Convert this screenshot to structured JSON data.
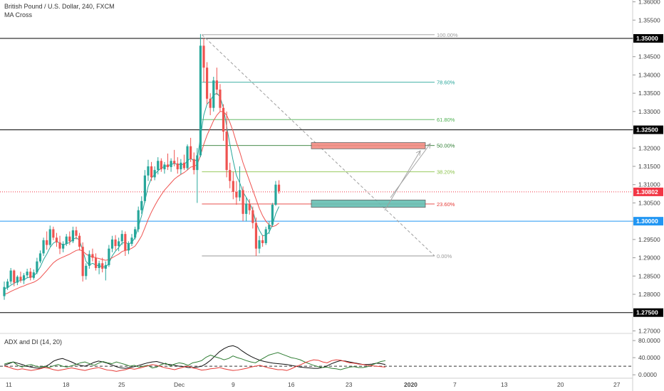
{
  "header": {
    "symbol_title": "British Pound / U.S. Dollar, 240, FXCM",
    "indicator_label": "MA Cross"
  },
  "sub_panel": {
    "label": "ADX and DI (14, 20)",
    "ticks": [
      "80.0000",
      "40.0000",
      "0.0000"
    ],
    "tick_values": [
      80,
      40,
      0
    ],
    "ylim": [
      -8,
      95
    ],
    "dashed_level": 20,
    "series": [
      {
        "color": "#111111",
        "values": [
          22,
          26,
          30,
          27,
          24,
          20,
          18,
          16,
          15,
          18,
          24,
          32,
          36,
          38,
          34,
          30,
          25,
          22,
          20,
          24,
          29,
          32,
          30,
          27,
          23,
          19,
          16,
          15,
          17,
          19,
          22,
          25,
          28,
          30,
          31,
          28,
          25,
          24,
          22,
          20,
          19,
          17,
          17,
          18,
          20,
          26,
          34,
          44,
          54,
          61,
          66,
          68,
          64,
          56,
          49,
          43,
          38,
          34,
          31,
          29,
          27,
          26,
          25,
          24,
          22,
          20,
          18,
          17,
          16,
          15,
          15,
          17,
          21,
          26,
          30,
          33,
          32,
          30,
          28,
          26,
          24,
          24,
          25,
          27,
          26,
          24
        ]
      },
      {
        "color": "#2e7d32",
        "values": [
          25,
          28,
          30,
          22,
          18,
          22,
          24,
          20,
          18,
          20,
          17,
          21,
          24,
          20,
          18,
          21,
          24,
          28,
          30,
          26,
          22,
          27,
          31,
          28,
          26,
          30,
          27,
          24,
          20,
          22,
          18,
          20,
          22,
          16,
          18,
          24,
          27,
          21,
          25,
          28,
          26,
          22,
          28,
          30,
          33,
          41,
          46,
          42,
          39,
          35,
          38,
          44,
          40,
          37,
          33,
          30,
          28,
          34,
          40,
          46,
          49,
          52,
          48,
          44,
          40,
          38,
          35,
          30,
          26,
          22,
          19,
          17,
          18,
          15,
          14,
          12,
          15,
          18,
          19,
          17,
          17,
          19,
          23,
          27,
          31,
          33
        ]
      },
      {
        "color": "#e53935",
        "values": [
          20,
          18,
          14,
          12,
          14,
          12,
          10,
          12,
          14,
          17,
          15,
          12,
          10,
          12,
          14,
          16,
          14,
          12,
          10,
          13,
          15,
          17,
          14,
          11,
          10,
          8,
          10,
          12,
          15,
          13,
          15,
          18,
          21,
          24,
          22,
          19,
          16,
          14,
          12,
          15,
          18,
          20,
          16,
          14,
          11,
          12,
          14,
          15,
          17,
          14,
          12,
          10,
          11,
          13,
          15,
          18,
          20,
          22,
          19,
          16,
          14,
          12,
          12,
          10,
          14,
          19,
          23,
          28,
          32,
          35,
          34,
          30,
          28,
          33,
          35,
          34,
          31,
          28,
          27,
          25,
          24,
          22,
          21,
          20,
          19,
          18
        ]
      }
    ]
  },
  "chart_data": {
    "type": "candlestick",
    "instrument": "British Pound / U.S. Dollar",
    "timeframe": "240",
    "source": "FXCM",
    "x_tick_labels": [
      "11",
      "18",
      "25",
      "Dec",
      "9",
      "16",
      "23",
      "2020",
      "7",
      "13",
      "20",
      "27"
    ],
    "y_tick_labels": [
      "1.36000",
      "1.35500",
      "1.35000",
      "1.34500",
      "1.34000",
      "1.33500",
      "1.33000",
      "1.32500",
      "1.32000",
      "1.31500",
      "1.31000",
      "1.30500",
      "1.30000",
      "1.29500",
      "1.29000",
      "1.28500",
      "1.28000",
      "1.27500",
      "1.27000"
    ],
    "ylim": [
      1.2695,
      1.3605
    ],
    "candles": [
      [
        1.2795,
        1.2835,
        1.2785,
        1.282
      ],
      [
        1.2818,
        1.2842,
        1.2812,
        1.2835
      ],
      [
        1.2835,
        1.2872,
        1.2828,
        1.2865
      ],
      [
        1.2865,
        1.2868,
        1.2822,
        1.2832
      ],
      [
        1.2832,
        1.2852,
        1.2825,
        1.2848
      ],
      [
        1.2848,
        1.2862,
        1.2832,
        1.2838
      ],
      [
        1.2838,
        1.2858,
        1.2828,
        1.2852
      ],
      [
        1.2852,
        1.287,
        1.2845,
        1.2862
      ],
      [
        1.2862,
        1.2872,
        1.2838,
        1.2845
      ],
      [
        1.2845,
        1.2868,
        1.284,
        1.286
      ],
      [
        1.286,
        1.29,
        1.2855,
        1.289
      ],
      [
        1.289,
        1.292,
        1.2885,
        1.2912
      ],
      [
        1.2912,
        1.2955,
        1.2905,
        1.2948
      ],
      [
        1.2948,
        1.2972,
        1.2922,
        1.2935
      ],
      [
        1.2935,
        1.2988,
        1.293,
        1.2978
      ],
      [
        1.2978,
        1.2985,
        1.2948,
        1.2955
      ],
      [
        1.2955,
        1.2968,
        1.293,
        1.2942
      ],
      [
        1.2942,
        1.296,
        1.291,
        1.2925
      ],
      [
        1.2925,
        1.2945,
        1.2915,
        1.2938
      ],
      [
        1.2938,
        1.2965,
        1.2932,
        1.2958
      ],
      [
        1.2958,
        1.2972,
        1.2935,
        1.2945
      ],
      [
        1.2945,
        1.2985,
        1.294,
        1.2975
      ],
      [
        1.2975,
        1.2985,
        1.295,
        1.296
      ],
      [
        1.296,
        1.2968,
        1.292,
        1.293
      ],
      [
        1.293,
        1.2942,
        1.2835,
        1.285
      ],
      [
        1.285,
        1.2885,
        1.284,
        1.2878
      ],
      [
        1.2878,
        1.292,
        1.287,
        1.291
      ],
      [
        1.291,
        1.2925,
        1.289,
        1.29
      ],
      [
        1.29,
        1.2912,
        1.2865,
        1.2872
      ],
      [
        1.2872,
        1.2892,
        1.2855,
        1.2885
      ],
      [
        1.2885,
        1.29,
        1.286,
        1.287
      ],
      [
        1.287,
        1.289,
        1.2838,
        1.288
      ],
      [
        1.288,
        1.2935,
        1.2875,
        1.2925
      ],
      [
        1.2925,
        1.296,
        1.2915,
        1.295
      ],
      [
        1.295,
        1.2962,
        1.292,
        1.2932
      ],
      [
        1.2932,
        1.2955,
        1.2918,
        1.2945
      ],
      [
        1.2945,
        1.2975,
        1.2935,
        1.2965
      ],
      [
        1.2965,
        1.2972,
        1.2905,
        1.292
      ],
      [
        1.292,
        1.2945,
        1.291,
        1.2938
      ],
      [
        1.2938,
        1.2965,
        1.2932,
        1.2955
      ],
      [
        1.2955,
        1.2985,
        1.295,
        1.2978
      ],
      [
        1.2978,
        1.304,
        1.297,
        1.303
      ],
      [
        1.303,
        1.3068,
        1.302,
        1.3055
      ],
      [
        1.3055,
        1.314,
        1.305,
        1.3125
      ],
      [
        1.3125,
        1.3168,
        1.311,
        1.315
      ],
      [
        1.315,
        1.3162,
        1.311,
        1.312
      ],
      [
        1.312,
        1.315,
        1.3112,
        1.314
      ],
      [
        1.314,
        1.3175,
        1.3128,
        1.3165
      ],
      [
        1.3165,
        1.3172,
        1.3135,
        1.3142
      ],
      [
        1.3142,
        1.3162,
        1.313,
        1.3155
      ],
      [
        1.3155,
        1.3185,
        1.314,
        1.3148
      ],
      [
        1.3148,
        1.3172,
        1.3135,
        1.3165
      ],
      [
        1.3165,
        1.3195,
        1.315,
        1.3158
      ],
      [
        1.3158,
        1.3175,
        1.313,
        1.3142
      ],
      [
        1.3142,
        1.317,
        1.3128,
        1.316
      ],
      [
        1.316,
        1.3182,
        1.314,
        1.3145
      ],
      [
        1.3145,
        1.321,
        1.314,
        1.3205
      ],
      [
        1.3205,
        1.3228,
        1.3162,
        1.317
      ],
      [
        1.317,
        1.3188,
        1.3128,
        1.314
      ],
      [
        1.314,
        1.32,
        1.305,
        1.318
      ],
      [
        1.318,
        1.3512,
        1.3175,
        1.348
      ],
      [
        1.348,
        1.35,
        1.338,
        1.342
      ],
      [
        1.342,
        1.3435,
        1.332,
        1.3335
      ],
      [
        1.3335,
        1.335,
        1.329,
        1.331
      ],
      [
        1.331,
        1.3395,
        1.33,
        1.3385
      ],
      [
        1.3385,
        1.342,
        1.3345,
        1.336
      ],
      [
        1.336,
        1.3375,
        1.33,
        1.331
      ],
      [
        1.331,
        1.332,
        1.322,
        1.3245
      ],
      [
        1.3245,
        1.33,
        1.312,
        1.314
      ],
      [
        1.314,
        1.316,
        1.309,
        1.311
      ],
      [
        1.311,
        1.3135,
        1.306,
        1.308
      ],
      [
        1.308,
        1.311,
        1.3045,
        1.3065
      ],
      [
        1.3065,
        1.315,
        1.3055,
        1.3085
      ],
      [
        1.3085,
        1.3095,
        1.3,
        1.302
      ],
      [
        1.302,
        1.3065,
        1.3,
        1.3048
      ],
      [
        1.3048,
        1.306,
        1.3018,
        1.303
      ],
      [
        1.303,
        1.304,
        1.298,
        1.2995
      ],
      [
        1.2995,
        1.301,
        1.2905,
        1.2925
      ],
      [
        1.2925,
        1.296,
        1.2912,
        1.2948
      ],
      [
        1.2948,
        1.2962,
        1.293,
        1.294
      ],
      [
        1.294,
        1.2985,
        1.2935,
        1.2978
      ],
      [
        1.2978,
        1.3,
        1.2965,
        1.299
      ],
      [
        1.299,
        1.305,
        1.2985,
        1.3045
      ],
      [
        1.3045,
        1.311,
        1.3042,
        1.31
      ],
      [
        1.31,
        1.3112,
        1.3075,
        1.3082
      ]
    ],
    "moving_averages": [
      {
        "color": "#26a69a",
        "values": [
          1.2815,
          1.2818,
          1.2825,
          1.283,
          1.2835,
          1.2838,
          1.284,
          1.2845,
          1.2848,
          1.285,
          1.286,
          1.2875,
          1.2895,
          1.291,
          1.2928,
          1.294,
          1.2945,
          1.294,
          1.2935,
          1.2938,
          1.2942,
          1.295,
          1.2955,
          1.2948,
          1.292,
          1.289,
          1.288,
          1.2885,
          1.288,
          1.2878,
          1.2876,
          1.2874,
          1.2885,
          1.2905,
          1.2918,
          1.2928,
          1.294,
          1.2942,
          1.2938,
          1.2942,
          1.2955,
          1.2985,
          1.3015,
          1.3055,
          1.3095,
          1.3118,
          1.3128,
          1.3138,
          1.3145,
          1.315,
          1.3152,
          1.3155,
          1.3158,
          1.3155,
          1.3155,
          1.3155,
          1.3165,
          1.3172,
          1.3165,
          1.3168,
          1.323,
          1.329,
          1.332,
          1.333,
          1.3345,
          1.335,
          1.334,
          1.331,
          1.326,
          1.321,
          1.3165,
          1.3125,
          1.3105,
          1.308,
          1.3065,
          1.305,
          1.303,
          1.2995,
          1.2975,
          1.296,
          1.2962,
          1.297,
          1.299,
          1.302,
          1.304
        ]
      },
      {
        "color": "#ef5350",
        "values": [
          1.28,
          1.2803,
          1.2808,
          1.2812,
          1.2816,
          1.282,
          1.2823,
          1.2827,
          1.283,
          1.2833,
          1.2838,
          1.2845,
          1.2855,
          1.2865,
          1.2876,
          1.2886,
          1.2893,
          1.2898,
          1.2902,
          1.2906,
          1.291,
          1.2915,
          1.292,
          1.2922,
          1.2918,
          1.291,
          1.2905,
          1.2903,
          1.29,
          1.2898,
          1.2895,
          1.2893,
          1.2895,
          1.29,
          1.2905,
          1.291,
          1.2917,
          1.292,
          1.2922,
          1.2926,
          1.2932,
          1.2945,
          1.296,
          1.2982,
          1.3005,
          1.3025,
          1.3042,
          1.3058,
          1.3072,
          1.3085,
          1.3095,
          1.3105,
          1.3115,
          1.3122,
          1.3128,
          1.3133,
          1.314,
          1.3148,
          1.315,
          1.3155,
          1.318,
          1.321,
          1.3235,
          1.3255,
          1.3275,
          1.329,
          1.33,
          1.33,
          1.329,
          1.327,
          1.3245,
          1.3215,
          1.319,
          1.316,
          1.3135,
          1.311,
          1.3085,
          1.306,
          1.3035,
          1.3015,
          1.3,
          1.299,
          1.2985,
          1.2988,
          1.2995
        ]
      }
    ],
    "horizontal_levels": [
      {
        "label": "1.35000",
        "value": 1.35,
        "color": "#000000"
      },
      {
        "label": "1.32500",
        "value": 1.325,
        "color": "#000000"
      },
      {
        "label": "1.30000",
        "value": 1.3,
        "color": "#2196f3"
      },
      {
        "label": "1.27500",
        "value": 1.275,
        "color": "#000000"
      }
    ],
    "last_price": {
      "label": "1.30802",
      "value": 1.30802,
      "color": "#f23645"
    },
    "fibonacci": {
      "start_index": 60,
      "end_index": 85,
      "high": 1.351,
      "low": 1.2905,
      "levels": [
        {
          "label": "100.00%",
          "value": 1.351,
          "color": "#999999"
        },
        {
          "label": "78.60%",
          "value": 1.338,
          "color": "#26a69a"
        },
        {
          "label": "61.80%",
          "value": 1.3278,
          "color": "#4caf50"
        },
        {
          "label": "50.00%",
          "value": 1.3207,
          "color": "#2e7d32"
        },
        {
          "label": "38.20%",
          "value": 1.3135,
          "color": "#8bc34a"
        },
        {
          "label": "23.60%",
          "value": 1.3047,
          "color": "#e53935"
        },
        {
          "label": "0.00%",
          "value": 1.2905,
          "color": "#999999"
        }
      ]
    },
    "zones": [
      {
        "name": "resistance",
        "from": 1.3198,
        "to": 1.3215,
        "color": "#f28b82"
      },
      {
        "name": "support",
        "from": 1.3038,
        "to": 1.3058,
        "color": "#66bfb3"
      }
    ]
  }
}
